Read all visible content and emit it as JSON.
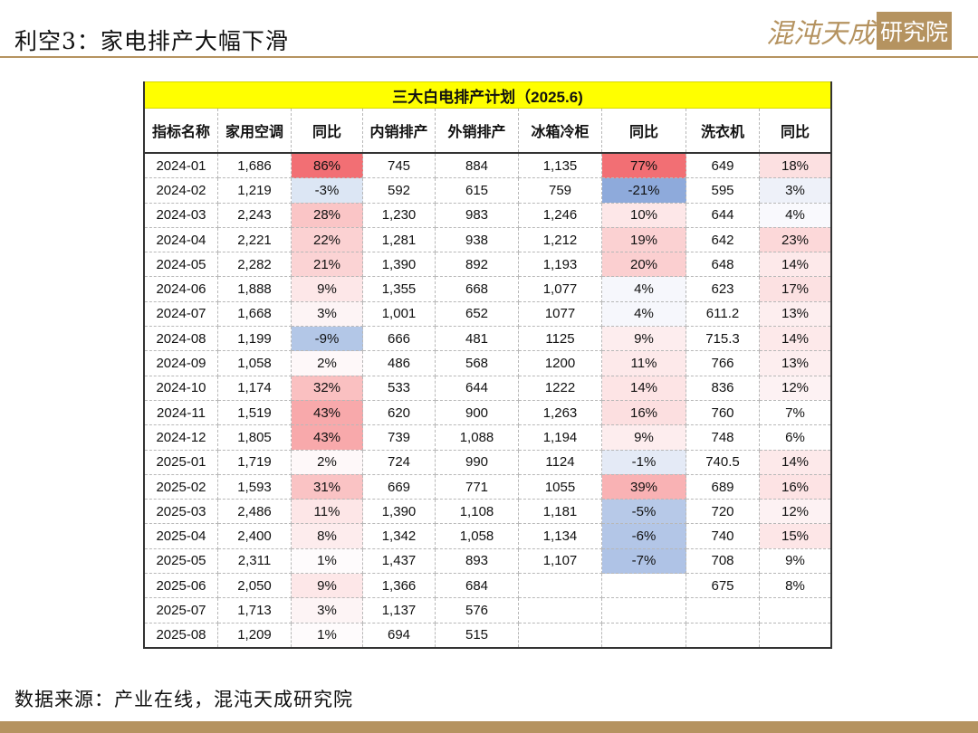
{
  "header": {
    "title": "利空3：家电排产大幅下滑",
    "logo_text": "混沌天成",
    "logo_box": "研究院"
  },
  "table": {
    "caption": "三大白电排产计划（2025.6)",
    "columns": [
      "指标名称",
      "家用空调",
      "同比",
      "内销排产",
      "外销排产",
      "冰箱冷柜",
      "同比",
      "洗衣机",
      "同比"
    ],
    "rows": [
      [
        "2024-01",
        "1,686",
        "86%",
        "745",
        "884",
        "1,135",
        "77%",
        "649",
        "18%"
      ],
      [
        "2024-02",
        "1,219",
        "-3%",
        "592",
        "615",
        "759",
        "-21%",
        "595",
        "3%"
      ],
      [
        "2024-03",
        "2,243",
        "28%",
        "1,230",
        "983",
        "1,246",
        "10%",
        "644",
        "4%"
      ],
      [
        "2024-04",
        "2,221",
        "22%",
        "1,281",
        "938",
        "1,212",
        "19%",
        "642",
        "23%"
      ],
      [
        "2024-05",
        "2,282",
        "21%",
        "1,390",
        "892",
        "1,193",
        "20%",
        "648",
        "14%"
      ],
      [
        "2024-06",
        "1,888",
        "9%",
        "1,355",
        "668",
        "1,077",
        "4%",
        "623",
        "17%"
      ],
      [
        "2024-07",
        "1,668",
        "3%",
        "1,001",
        "652",
        "1077",
        "4%",
        "611.2",
        "13%"
      ],
      [
        "2024-08",
        "1,199",
        "-9%",
        "666",
        "481",
        "1125",
        "9%",
        "715.3",
        "14%"
      ],
      [
        "2024-09",
        "1,058",
        "2%",
        "486",
        "568",
        "1200",
        "11%",
        "766",
        "13%"
      ],
      [
        "2024-10",
        "1,174",
        "32%",
        "533",
        "644",
        "1222",
        "14%",
        "836",
        "12%"
      ],
      [
        "2024-11",
        "1,519",
        "43%",
        "620",
        "900",
        "1,263",
        "16%",
        "760",
        "7%"
      ],
      [
        "2024-12",
        "1,805",
        "43%",
        "739",
        "1,088",
        "1,194",
        "9%",
        "748",
        "6%"
      ],
      [
        "2025-01",
        "1,719",
        "2%",
        "724",
        "990",
        "1124",
        "-1%",
        "740.5",
        "14%"
      ],
      [
        "2025-02",
        "1,593",
        "31%",
        "669",
        "771",
        "1055",
        "39%",
        "689",
        "16%"
      ],
      [
        "2025-03",
        "2,486",
        "11%",
        "1,390",
        "1,108",
        "1,181",
        "-5%",
        "720",
        "12%"
      ],
      [
        "2025-04",
        "2,400",
        "8%",
        "1,342",
        "1,058",
        "1,134",
        "-6%",
        "740",
        "15%"
      ],
      [
        "2025-05",
        "2,311",
        "1%",
        "1,437",
        "893",
        "1,107",
        "-7%",
        "708",
        "9%"
      ],
      [
        "2025-06",
        "2,050",
        "9%",
        "1,366",
        "684",
        "",
        "",
        "675",
        "8%"
      ],
      [
        "2025-07",
        "1,713",
        "3%",
        "1,137",
        "576",
        "",
        "",
        "",
        ""
      ],
      [
        "2025-08",
        "1,209",
        "1%",
        "694",
        "515",
        "",
        "",
        "",
        ""
      ]
    ],
    "heat_colors": {
      "c2": [
        "#f26f74",
        "#dce6f4",
        "#fac5c6",
        "#fbd1d2",
        "#fbd3d4",
        "#fde7e8",
        "#fdf4f5",
        "#b3c7e7",
        "#fef8f9",
        "#fac0c1",
        "#f8a9ab",
        "#f8a9ab",
        "#fef8f9",
        "#fac3c4",
        "#fde6e7",
        "#fdeced",
        "#fefbfc",
        "#fde7e8",
        "#fdf4f5",
        "#fefbfc"
      ],
      "c6": [
        "#f26f74",
        "#8eaadb",
        "#fde7e8",
        "#fbd1d2",
        "#fbcfd0",
        "#f6f7fc",
        "#f6f7fc",
        "#fdedee",
        "#fde9ea",
        "#fde4e5",
        "#fcdfe0",
        "#fdedee",
        "#e4eaf6",
        "#f9b2b4",
        "#b7c9e8",
        "#b3c6e7",
        "#afc3e6",
        "#ffffff",
        "#ffffff",
        "#ffffff"
      ],
      "c8": [
        "#fce0e1",
        "#eef1f9",
        "#f9f9fd",
        "#fcd8d9",
        "#fde9ea",
        "#fce1e2",
        "#fdeeef",
        "#fde9ea",
        "#fdeeef",
        "#fdf2f3",
        "#ffffff",
        "#ffffff",
        "#fde9ea",
        "#fde3e4",
        "#fdf2f3",
        "#fde6e7",
        "#ffffff",
        "#ffffff",
        "#ffffff",
        "#ffffff"
      ]
    }
  },
  "footer": {
    "source": "数据来源：产业在线，混沌天成研究院"
  }
}
